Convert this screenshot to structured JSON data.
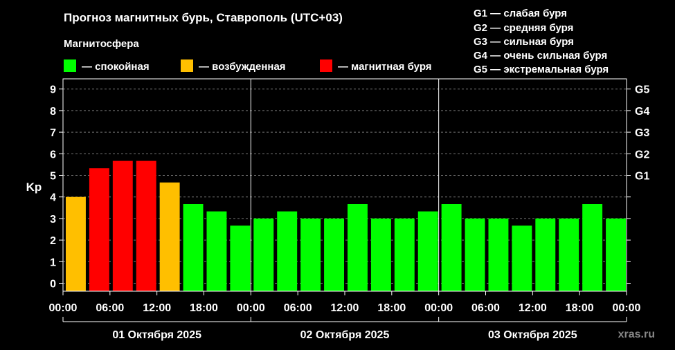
{
  "title": "Прогноз магнитных бурь, Ставрополь (UTC+03)",
  "legend": {
    "title": "Магнитосфера",
    "items": [
      {
        "label": "— спокойная",
        "color": "#00ff00"
      },
      {
        "label": "— возбужденная",
        "color": "#ffbf00"
      },
      {
        "label": "— магнитная буря",
        "color": "#ff0000"
      }
    ]
  },
  "g_legend": [
    "G1 — слабая буря",
    "G2 — средняя буря",
    "G3 — сильная буря",
    "G4 — очень сильная буря",
    "G5 — экстремальная буря"
  ],
  "watermark": "xras.ru",
  "chart_data": {
    "type": "bar",
    "title": "Прогноз магнитных бурь, Ставрополь (UTC+03)",
    "ylabel": "Kp",
    "ylim": [
      0,
      9
    ],
    "y_ticks": [
      "0",
      "1",
      "2",
      "3",
      "4",
      "5",
      "6",
      "7",
      "8",
      "9"
    ],
    "right_ticks": [
      {
        "label": "G1",
        "kp": 5
      },
      {
        "label": "G2",
        "kp": 6
      },
      {
        "label": "G3",
        "kp": 7
      },
      {
        "label": "G4",
        "kp": 8
      },
      {
        "label": "G5",
        "kp": 9
      }
    ],
    "x_ticks": [
      "00:00",
      "06:00",
      "12:00",
      "18:00",
      "00:00",
      "06:00",
      "12:00",
      "18:00",
      "00:00",
      "06:00",
      "12:00",
      "18:00",
      "00:00"
    ],
    "days": [
      "01 Октября 2025",
      "02 Октября 2025",
      "03 Октября 2025"
    ],
    "grid": true,
    "bar_interval_hours": 3,
    "values": [
      4.0,
      5.33,
      5.67,
      5.67,
      4.67,
      3.67,
      3.33,
      2.67,
      3.0,
      3.33,
      3.0,
      3.0,
      3.67,
      3.0,
      3.0,
      3.33,
      3.67,
      3.0,
      3.0,
      2.67,
      3.0,
      3.0,
      3.67,
      3.0
    ],
    "status": [
      "excited",
      "storm",
      "storm",
      "storm",
      "excited",
      "quiet",
      "quiet",
      "quiet",
      "quiet",
      "quiet",
      "quiet",
      "quiet",
      "quiet",
      "quiet",
      "quiet",
      "quiet",
      "quiet",
      "quiet",
      "quiet",
      "quiet",
      "quiet",
      "quiet",
      "quiet",
      "quiet"
    ],
    "colors": {
      "quiet": "#00ff00",
      "excited": "#ffbf00",
      "storm": "#ff0000"
    }
  }
}
